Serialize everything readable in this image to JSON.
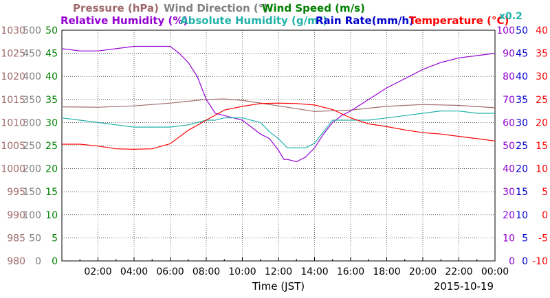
{
  "chart_data": {
    "type": "line",
    "date": "2015-10-19",
    "xlabel": "Time (JST)",
    "x_tick_labels": [
      "02:00",
      "04:00",
      "06:00",
      "08:00",
      "10:00",
      "12:00",
      "14:00",
      "16:00",
      "18:00",
      "20:00",
      "22:00",
      "00:00"
    ],
    "xlim": [
      0,
      24
    ],
    "grid": true,
    "legend_position": "top",
    "legend": {
      "pressure": "Pressure (hPa)",
      "wind_direction": "Wind Direction (°)",
      "wind_speed": "Wind Speed (m/s)",
      "relative_humidity": "Relative Humidity (%)",
      "absolute_humidity": "Absolute Humidity (g/m³)",
      "rain_rate": "Rain Rate(mm/h)",
      "temperature": "Temperature (°C)",
      "scale_note": "x0.2"
    },
    "axes": {
      "pressure": {
        "color": "#a06a6a",
        "min": 980,
        "max": 1030,
        "ticks": [
          "1030",
          "1025",
          "1020",
          "1015",
          "1010",
          "1005",
          "1000",
          "995",
          "990",
          "985",
          "980"
        ]
      },
      "wind_direction": {
        "color": "#808080",
        "min": 0,
        "max": 500,
        "ticks": [
          "500",
          "450",
          "400",
          "350",
          "300",
          "250",
          "200",
          "150",
          "100",
          "50",
          "0"
        ]
      },
      "wind_speed": {
        "color": "#008000",
        "min": 0,
        "max": 50,
        "ticks": [
          "50",
          "45",
          "40",
          "35",
          "30",
          "25",
          "20",
          "15",
          "10",
          "5",
          "0"
        ]
      },
      "relative_humidity": {
        "color": "#9400d3",
        "min": 0,
        "max": 100,
        "ticks": [
          "100",
          "90",
          "80",
          "70",
          "60",
          "50",
          "40",
          "30",
          "20",
          "10",
          "0"
        ]
      },
      "rain_rate": {
        "color": "#0000cd",
        "min": 0,
        "max": 50,
        "ticks": [
          "50",
          "45",
          "40",
          "35",
          "30",
          "25",
          "20",
          "15",
          "10",
          "5",
          "0"
        ]
      },
      "temperature": {
        "color": "#ff0000",
        "min": -10,
        "max": 40,
        "ticks": [
          "40",
          "35",
          "30",
          "25",
          "20",
          "15",
          "10",
          "5",
          "0",
          "-5",
          "-10"
        ]
      }
    },
    "colors": {
      "pressure": "#a06a6a",
      "wind_direction": "#808080",
      "wind_speed": "#008000",
      "relative_humidity": "#9400d3",
      "absolute_humidity": "#20b2aa",
      "rain_rate": "#0000ff",
      "temperature": "#ff0000"
    },
    "series": [
      {
        "name": "Pressure (hPa)",
        "axis": "pressure",
        "x": [
          0,
          2,
          4,
          6,
          8,
          9,
          10,
          12,
          14,
          16,
          18,
          20,
          22,
          24
        ],
        "values": [
          1013.4,
          1013.3,
          1013.6,
          1014.2,
          1015.0,
          1015.1,
          1014.8,
          1013.6,
          1012.4,
          1012.7,
          1013.5,
          1013.9,
          1013.7,
          1013.2
        ]
      },
      {
        "name": "Relative Humidity (%)",
        "axis": "relative_humidity",
        "x": [
          0,
          1,
          2,
          3,
          4,
          5,
          6,
          6.5,
          7,
          7.5,
          8,
          8.5,
          9,
          9.5,
          10,
          10.5,
          11,
          11.5,
          12,
          12.3,
          12.5,
          13,
          13.5,
          14,
          14.5,
          15,
          15.5,
          16,
          17,
          18,
          19,
          20,
          21,
          22,
          23,
          24
        ],
        "values": [
          92,
          91,
          91,
          92,
          93,
          93,
          93,
          90,
          86,
          80,
          70,
          64,
          63,
          62,
          61,
          58,
          55,
          53,
          48,
          44,
          44,
          43,
          45,
          49,
          55,
          60,
          63,
          65,
          70,
          75,
          79,
          83,
          86,
          88,
          89,
          90
        ]
      },
      {
        "name": "Absolute Humidity (g/m³)",
        "axis": "relative_humidity",
        "x": [
          0,
          1,
          2,
          3,
          4,
          5,
          6,
          7,
          8,
          8.5,
          9,
          10,
          11,
          11.5,
          12,
          12.5,
          13,
          13.5,
          14,
          14.5,
          15,
          16,
          17,
          18,
          19,
          20,
          21,
          22,
          23,
          24
        ],
        "values": [
          62,
          61,
          60,
          59,
          58,
          58,
          58,
          59,
          61,
          61,
          62,
          62,
          60,
          56,
          53,
          49,
          49,
          49,
          51,
          56,
          61,
          61,
          61,
          62,
          63,
          64,
          65,
          65,
          64,
          64
        ]
      },
      {
        "name": "Temperature (°C)",
        "axis": "temperature",
        "x": [
          0,
          1,
          2,
          3,
          4,
          5,
          6,
          7,
          8,
          9,
          10,
          11,
          12,
          13,
          14,
          15,
          16,
          17,
          18,
          19,
          20,
          21,
          22,
          23,
          24
        ],
        "values": [
          15.3,
          15.3,
          14.9,
          14.3,
          14.2,
          14.3,
          15.4,
          18.3,
          20.5,
          22.7,
          23.5,
          24.1,
          24.2,
          24.1,
          23.8,
          22.8,
          21.0,
          19.7,
          19.1,
          18.4,
          17.8,
          17.5,
          17.0,
          16.5,
          16.0
        ]
      }
    ]
  }
}
